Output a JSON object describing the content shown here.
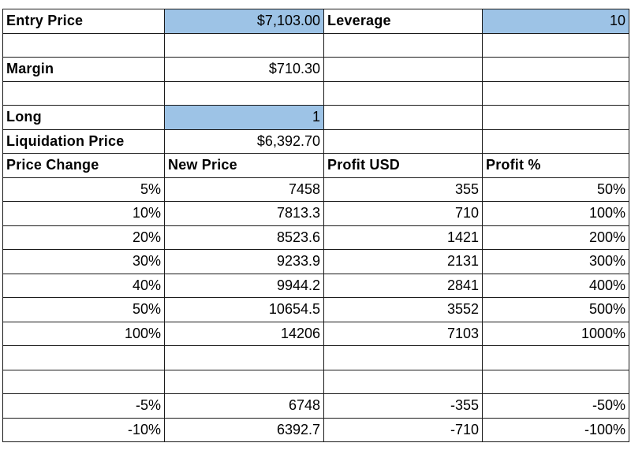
{
  "inputs": {
    "entry_price_label": "Entry Price",
    "entry_price_value": "$7,103.00",
    "leverage_label": "Leverage",
    "leverage_value": "10",
    "margin_label": "Margin",
    "margin_value": "$710.30",
    "long_label": "Long",
    "long_value": "1",
    "liquidation_label": "Liquidation Price",
    "liquidation_value": "$6,392.70"
  },
  "colors": {
    "input_highlight": "#9dc3e6",
    "grid_line": "#1a1a1a"
  },
  "table": {
    "headers": [
      "Price Change",
      "New Price",
      "Profit USD",
      "Profit %"
    ],
    "rows": [
      [
        "5%",
        "7458",
        "355",
        "50%"
      ],
      [
        "10%",
        "7813.3",
        "710",
        "100%"
      ],
      [
        "20%",
        "8523.6",
        "1421",
        "200%"
      ],
      [
        "30%",
        "9233.9",
        "2131",
        "300%"
      ],
      [
        "40%",
        "9944.2",
        "2841",
        "400%"
      ],
      [
        "50%",
        "10654.5",
        "3552",
        "500%"
      ],
      [
        "100%",
        "14206",
        "7103",
        "1000%"
      ],
      [
        "",
        "",
        "",
        ""
      ],
      [
        "",
        "",
        "",
        ""
      ],
      [
        "-5%",
        "6748",
        "-355",
        "-50%"
      ],
      [
        "-10%",
        "6392.7",
        "-710",
        "-100%"
      ]
    ]
  }
}
